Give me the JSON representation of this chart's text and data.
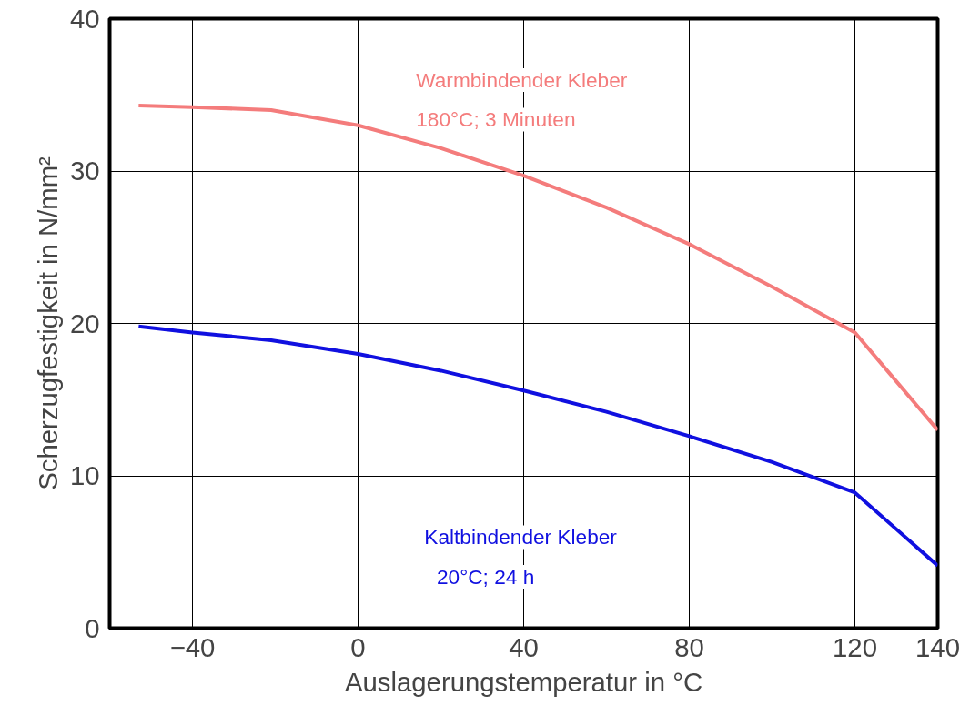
{
  "chart_data": {
    "type": "line",
    "xlabel": "Auslagerungstemperatur in °C",
    "ylabel": "Scherzugfestigkeit in N/mm²",
    "x": [
      -53,
      -40,
      -21,
      0,
      20,
      40,
      60,
      80,
      100,
      120,
      130,
      140
    ],
    "series": [
      {
        "name": "Warmbindender Kleber\n180°C; 3 Minuten",
        "color": "#f47c7c",
        "values": [
          34.3,
          34.2,
          34.0,
          33.0,
          31.5,
          29.7,
          27.6,
          25.2,
          22.4,
          19.4,
          16.2,
          13.0
        ]
      },
      {
        "name": "Kaltbindender Kleber\n20°C; 24 h",
        "color": "#1010e0",
        "values": [
          19.8,
          19.4,
          18.9,
          18.0,
          16.9,
          15.6,
          14.2,
          12.6,
          10.9,
          8.9,
          6.5,
          4.1
        ]
      }
    ],
    "xlim": [
      -60,
      140
    ],
    "ylim": [
      0,
      40
    ],
    "xticks": [
      -40,
      0,
      40,
      80,
      120,
      140
    ],
    "yticks": [
      0,
      10,
      20,
      30,
      40
    ],
    "grid": true,
    "marker": "none",
    "line_style": "solid"
  }
}
